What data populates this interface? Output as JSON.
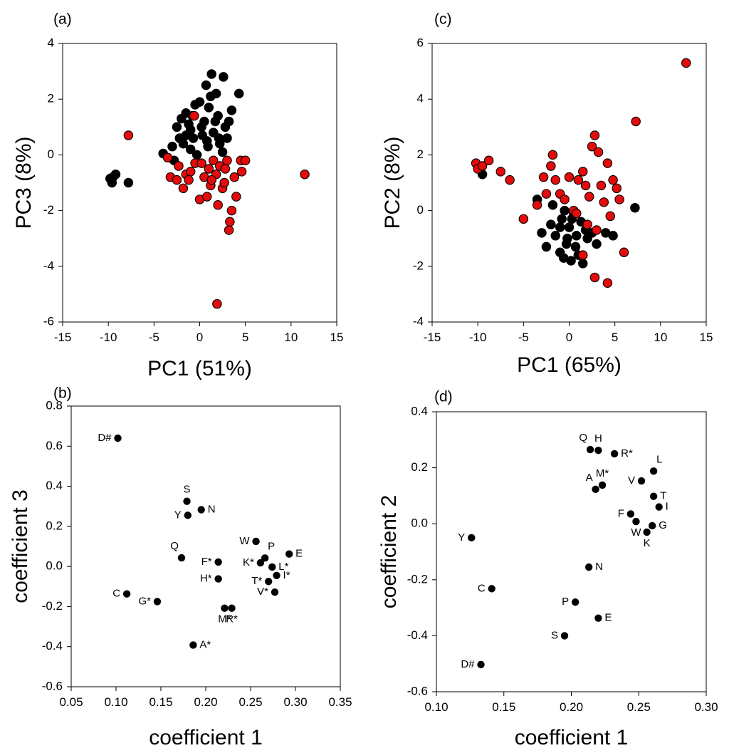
{
  "chart_data": [
    {
      "type": "scatter",
      "panel_label": "(a)",
      "xlabel": "PC1 (51%)",
      "ylabel": "PC3 (8%)",
      "xlim": [
        -15,
        15
      ],
      "ylim": [
        -6,
        4
      ],
      "xticks": [
        -15,
        -10,
        -5,
        0,
        5,
        10,
        15
      ],
      "yticks": [
        -6,
        -4,
        -2,
        0,
        2,
        4
      ],
      "tick_labels_x": [
        "-15",
        "-10",
        "-5",
        "0",
        "5",
        "10",
        "15"
      ],
      "tick_labels_y": [
        "-6",
        "-4",
        "-2",
        "0",
        "2",
        "4"
      ],
      "series": [
        {
          "name": "black",
          "color": "#000000",
          "points": [
            [
              -9.8,
              -0.85
            ],
            [
              -9.5,
              -0.8
            ],
            [
              -9.2,
              -0.7
            ],
            [
              -9.6,
              -1.0
            ],
            [
              -7.8,
              -1.0
            ],
            [
              -4.0,
              0.05
            ],
            [
              -3.0,
              0.3
            ],
            [
              -2.5,
              1.0
            ],
            [
              -2.2,
              0.6
            ],
            [
              -2.0,
              1.3
            ],
            [
              -1.8,
              0.4
            ],
            [
              -1.5,
              0.7
            ],
            [
              -1.5,
              1.5
            ],
            [
              -1.2,
              1.1
            ],
            [
              -1.0,
              0.2
            ],
            [
              -0.8,
              1.4
            ],
            [
              -0.7,
              0.6
            ],
            [
              -0.5,
              1.8
            ],
            [
              -0.3,
              0.0
            ],
            [
              0.0,
              1.9
            ],
            [
              0.2,
              1.0
            ],
            [
              0.3,
              0.7
            ],
            [
              0.5,
              1.2
            ],
            [
              0.7,
              2.5
            ],
            [
              0.8,
              0.5
            ],
            [
              1.0,
              1.7
            ],
            [
              1.2,
              2.1
            ],
            [
              1.3,
              2.9
            ],
            [
              1.5,
              0.8
            ],
            [
              1.7,
              1.2
            ],
            [
              1.8,
              2.2
            ],
            [
              2.0,
              1.4
            ],
            [
              2.2,
              0.4
            ],
            [
              2.5,
              0.1
            ],
            [
              2.6,
              2.8
            ],
            [
              2.8,
              1.0
            ],
            [
              3.0,
              0.6
            ],
            [
              3.2,
              1.2
            ],
            [
              3.5,
              1.6
            ],
            [
              4.3,
              2.2
            ],
            [
              -2.8,
              -0.2
            ],
            [
              -1.0,
              0.9
            ],
            [
              0.9,
              0.3
            ],
            [
              2.1,
              0.6
            ]
          ]
        },
        {
          "name": "red",
          "color": "#e30b0b",
          "points": [
            [
              -7.8,
              0.7
            ],
            [
              -3.5,
              -0.1
            ],
            [
              -3.2,
              -0.8
            ],
            [
              -2.5,
              -0.9
            ],
            [
              -2.3,
              -0.4
            ],
            [
              -1.8,
              -1.2
            ],
            [
              -1.5,
              -0.7
            ],
            [
              -1.0,
              -0.6
            ],
            [
              -1.2,
              -0.9
            ],
            [
              -0.5,
              -0.3
            ],
            [
              -0.6,
              1.4
            ],
            [
              0.0,
              -1.6
            ],
            [
              0.2,
              -0.3
            ],
            [
              0.5,
              -0.8
            ],
            [
              0.8,
              -1.5
            ],
            [
              1.0,
              -0.5
            ],
            [
              1.2,
              -1.1
            ],
            [
              1.5,
              -0.2
            ],
            [
              1.8,
              -0.7
            ],
            [
              2.0,
              -1.8
            ],
            [
              2.2,
              -0.4
            ],
            [
              2.5,
              -1.2
            ],
            [
              2.8,
              -0.5
            ],
            [
              3.0,
              -0.2
            ],
            [
              3.2,
              -2.7
            ],
            [
              3.3,
              -2.4
            ],
            [
              3.5,
              -2.0
            ],
            [
              3.8,
              -0.8
            ],
            [
              4.0,
              -1.5
            ],
            [
              4.5,
              -0.2
            ],
            [
              5.0,
              -0.2
            ],
            [
              4.6,
              -0.6
            ],
            [
              11.5,
              -0.7
            ],
            [
              1.9,
              -5.35
            ],
            [
              1.3,
              -0.9
            ],
            [
              2.7,
              -1.0
            ]
          ]
        }
      ]
    },
    {
      "type": "scatter",
      "panel_label": "(c)",
      "xlabel": "PC1 (65%)",
      "ylabel": "PC2 (8%)",
      "xlim": [
        -15,
        15
      ],
      "ylim": [
        -4,
        6
      ],
      "xticks": [
        -15,
        -10,
        -5,
        0,
        5,
        10,
        15
      ],
      "yticks": [
        -4,
        -2,
        0,
        2,
        4,
        6
      ],
      "tick_labels_x": [
        "-15",
        "-10",
        "-5",
        "0",
        "5",
        "10",
        "15"
      ],
      "tick_labels_y": [
        "-4",
        "-2",
        "0",
        "2",
        "4",
        "6"
      ],
      "series": [
        {
          "name": "black",
          "color": "#000000",
          "points": [
            [
              -9.5,
              1.3
            ],
            [
              -3.5,
              0.4
            ],
            [
              -2.0,
              -0.5
            ],
            [
              -1.5,
              -0.9
            ],
            [
              -1.0,
              -1.5
            ],
            [
              -0.8,
              -0.3
            ],
            [
              -0.5,
              0.0
            ],
            [
              -0.3,
              -1.2
            ],
            [
              0.0,
              -0.6
            ],
            [
              0.2,
              -1.8
            ],
            [
              0.5,
              -0.1
            ],
            [
              0.8,
              -0.9
            ],
            [
              1.0,
              -1.6
            ],
            [
              1.3,
              -0.4
            ],
            [
              1.5,
              -1.9
            ],
            [
              1.8,
              -0.7
            ],
            [
              2.0,
              -1.0
            ],
            [
              -2.5,
              -1.3
            ],
            [
              -3.0,
              -0.8
            ],
            [
              -1.8,
              0.2
            ],
            [
              -0.2,
              -1.0
            ],
            [
              0.7,
              -1.3
            ],
            [
              2.5,
              -0.8
            ],
            [
              3.0,
              -1.2
            ],
            [
              4.0,
              -0.8
            ],
            [
              4.8,
              -0.9
            ],
            [
              7.2,
              0.1
            ],
            [
              -1.0,
              -0.6
            ],
            [
              0.3,
              -0.3
            ],
            [
              -0.6,
              -1.7
            ]
          ]
        },
        {
          "name": "red",
          "color": "#e30b0b",
          "points": [
            [
              -10.2,
              1.7
            ],
            [
              -10.0,
              1.5
            ],
            [
              -9.5,
              1.6
            ],
            [
              -8.8,
              1.8
            ],
            [
              -7.5,
              1.4
            ],
            [
              -6.5,
              1.1
            ],
            [
              -5.0,
              -0.3
            ],
            [
              -3.5,
              0.2
            ],
            [
              -2.5,
              0.6
            ],
            [
              -2.0,
              1.6
            ],
            [
              -1.8,
              2.0
            ],
            [
              -1.5,
              1.1
            ],
            [
              -1.0,
              0.6
            ],
            [
              -0.5,
              0.4
            ],
            [
              0.0,
              1.2
            ],
            [
              0.5,
              0.0
            ],
            [
              1.0,
              1.1
            ],
            [
              1.5,
              1.4
            ],
            [
              1.8,
              0.9
            ],
            [
              2.0,
              -0.5
            ],
            [
              2.2,
              0.5
            ],
            [
              2.5,
              2.3
            ],
            [
              2.8,
              2.7
            ],
            [
              3.0,
              -0.7
            ],
            [
              3.2,
              2.1
            ],
            [
              3.5,
              0.9
            ],
            [
              3.8,
              0.3
            ],
            [
              4.2,
              1.7
            ],
            [
              4.5,
              -0.2
            ],
            [
              4.8,
              1.1
            ],
            [
              5.2,
              0.8
            ],
            [
              5.5,
              0.4
            ],
            [
              6.0,
              -1.5
            ],
            [
              2.8,
              -2.4
            ],
            [
              4.2,
              -2.6
            ],
            [
              7.3,
              3.2
            ],
            [
              12.8,
              5.3
            ],
            [
              -2.8,
              1.2
            ],
            [
              0.8,
              -0.1
            ],
            [
              1.5,
              -1.6
            ]
          ]
        }
      ]
    },
    {
      "type": "scatter",
      "panel_label": "(b)",
      "xlabel": "coefficient 1",
      "ylabel": "coefficient 3",
      "xlim": [
        0.05,
        0.35
      ],
      "ylim": [
        -0.6,
        0.8
      ],
      "xticks": [
        0.05,
        0.1,
        0.15,
        0.2,
        0.25,
        0.3,
        0.35
      ],
      "yticks": [
        -0.6,
        -0.4,
        -0.2,
        0.0,
        0.2,
        0.4,
        0.6,
        0.8
      ],
      "tick_labels_x": [
        "0.05",
        "0.10",
        "0.15",
        "0.20",
        "0.25",
        "0.30",
        "0.35"
      ],
      "tick_labels_y": [
        "-0.6",
        "-0.4",
        "-0.2",
        "0.0",
        "0.2",
        "0.4",
        "0.6",
        "0.8"
      ],
      "points": [
        {
          "label": "D#",
          "x": 0.102,
          "y": 0.64,
          "pos": "left"
        },
        {
          "label": "S",
          "x": 0.179,
          "y": 0.325,
          "pos": "top"
        },
        {
          "label": "Y",
          "x": 0.18,
          "y": 0.255,
          "pos": "left"
        },
        {
          "label": "N",
          "x": 0.195,
          "y": 0.283,
          "pos": "right"
        },
        {
          "label": "Q",
          "x": 0.173,
          "y": 0.043,
          "pos": "topleft"
        },
        {
          "label": "C",
          "x": 0.112,
          "y": -0.137,
          "pos": "left"
        },
        {
          "label": "G*",
          "x": 0.146,
          "y": -0.175,
          "pos": "left"
        },
        {
          "label": "F*",
          "x": 0.214,
          "y": 0.022,
          "pos": "left"
        },
        {
          "label": "H*",
          "x": 0.214,
          "y": -0.062,
          "pos": "left"
        },
        {
          "label": "W",
          "x": 0.256,
          "y": 0.125,
          "pos": "left"
        },
        {
          "label": "P",
          "x": 0.266,
          "y": 0.042,
          "pos": "topright"
        },
        {
          "label": "K*",
          "x": 0.261,
          "y": 0.018,
          "pos": "left"
        },
        {
          "label": "E",
          "x": 0.293,
          "y": 0.062,
          "pos": "right"
        },
        {
          "label": "L*",
          "x": 0.274,
          "y": -0.003,
          "pos": "right"
        },
        {
          "label": "I*",
          "x": 0.279,
          "y": -0.045,
          "pos": "right"
        },
        {
          "label": "T*",
          "x": 0.27,
          "y": -0.075,
          "pos": "left"
        },
        {
          "label": "V*",
          "x": 0.277,
          "y": -0.128,
          "pos": "left"
        },
        {
          "label": "M*",
          "x": 0.221,
          "y": -0.208,
          "pos": "below"
        },
        {
          "label": "R*",
          "x": 0.229,
          "y": -0.208,
          "pos": "below"
        },
        {
          "label": "A*",
          "x": 0.186,
          "y": -0.392,
          "pos": "right"
        }
      ]
    },
    {
      "type": "scatter",
      "panel_label": "(d)",
      "xlabel": "coefficient 1",
      "ylabel": "coefficient 2",
      "xlim": [
        0.1,
        0.3
      ],
      "ylim": [
        -0.6,
        0.4
      ],
      "xticks": [
        0.1,
        0.15,
        0.2,
        0.25,
        0.3
      ],
      "yticks": [
        -0.6,
        -0.4,
        -0.2,
        0.0,
        0.2,
        0.4
      ],
      "tick_labels_x": [
        "0.10",
        "0.15",
        "0.20",
        "0.25",
        "0.30"
      ],
      "tick_labels_y": [
        "-0.6",
        "-0.4",
        "-0.2",
        "0.0",
        "0.2",
        "0.4"
      ],
      "points": [
        {
          "label": "Q",
          "x": 0.214,
          "y": 0.265,
          "pos": "topleft"
        },
        {
          "label": "H",
          "x": 0.22,
          "y": 0.262,
          "pos": "top"
        },
        {
          "label": "R*",
          "x": 0.232,
          "y": 0.25,
          "pos": "right"
        },
        {
          "label": "L",
          "x": 0.261,
          "y": 0.188,
          "pos": "topright"
        },
        {
          "label": "A",
          "x": 0.218,
          "y": 0.123,
          "pos": "topleft"
        },
        {
          "label": "M*",
          "x": 0.223,
          "y": 0.138,
          "pos": "top"
        },
        {
          "label": "V",
          "x": 0.252,
          "y": 0.153,
          "pos": "left"
        },
        {
          "label": "T",
          "x": 0.261,
          "y": 0.098,
          "pos": "right"
        },
        {
          "label": "I",
          "x": 0.265,
          "y": 0.06,
          "pos": "right"
        },
        {
          "label": "F",
          "x": 0.244,
          "y": 0.035,
          "pos": "left"
        },
        {
          "label": "W",
          "x": 0.248,
          "y": 0.008,
          "pos": "below"
        },
        {
          "label": "G",
          "x": 0.26,
          "y": -0.007,
          "pos": "right"
        },
        {
          "label": "K",
          "x": 0.256,
          "y": -0.03,
          "pos": "below"
        },
        {
          "label": "Y",
          "x": 0.126,
          "y": -0.05,
          "pos": "left"
        },
        {
          "label": "N",
          "x": 0.213,
          "y": -0.155,
          "pos": "right"
        },
        {
          "label": "C",
          "x": 0.141,
          "y": -0.232,
          "pos": "left"
        },
        {
          "label": "P",
          "x": 0.203,
          "y": -0.28,
          "pos": "left"
        },
        {
          "label": "E",
          "x": 0.22,
          "y": -0.337,
          "pos": "right"
        },
        {
          "label": "S",
          "x": 0.195,
          "y": -0.4,
          "pos": "left"
        },
        {
          "label": "D#",
          "x": 0.133,
          "y": -0.503,
          "pos": "left"
        }
      ]
    }
  ]
}
